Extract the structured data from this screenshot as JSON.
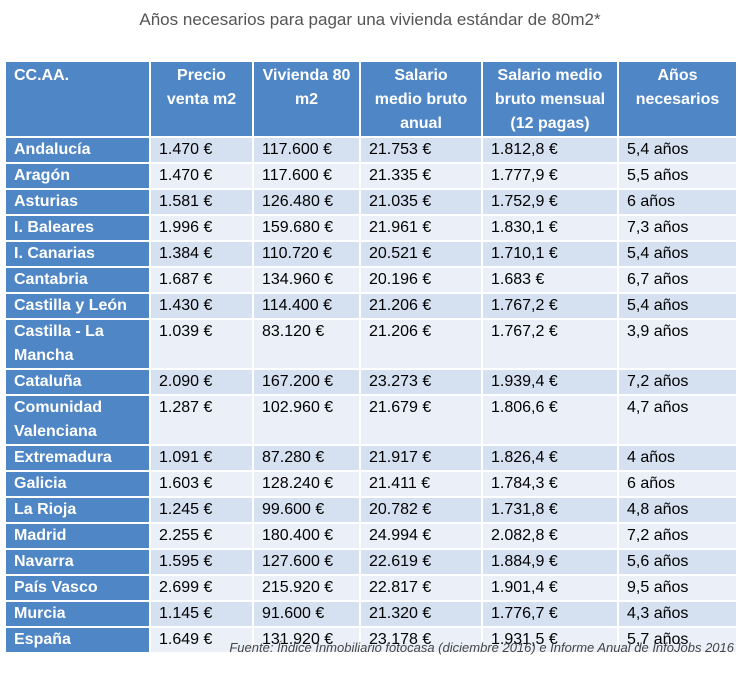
{
  "title": "Años necesarios para pagar una vivienda estándar de 80m2*",
  "table": {
    "headers": [
      "CC.AA.",
      "Precio venta m2",
      "Vivienda 80 m2",
      "Salario medio bruto anual",
      "Salario medio bruto mensual (12 pagas)",
      "Años necesarios"
    ],
    "rows": [
      [
        "Andalucía",
        "1.470 €",
        "117.600 €",
        "21.753 €",
        "1.812,8 €",
        "5,4 años"
      ],
      [
        "Aragón",
        "1.470 €",
        "117.600 €",
        "21.335 €",
        "1.777,9 €",
        "5,5 años"
      ],
      [
        "Asturias",
        "1.581 €",
        "126.480 €",
        "21.035 €",
        "1.752,9 €",
        "6 años"
      ],
      [
        "I. Baleares",
        "1.996 €",
        "159.680 €",
        "21.961 €",
        "1.830,1 €",
        "7,3 años"
      ],
      [
        "I. Canarias",
        "1.384 €",
        "110.720 €",
        "20.521 €",
        "1.710,1 €",
        "5,4 años"
      ],
      [
        "Cantabria",
        "1.687 €",
        "134.960 €",
        "20.196 €",
        "1.683 €",
        "6,7 años"
      ],
      [
        "Castilla y León",
        "1.430 €",
        "114.400 €",
        "21.206 €",
        "1.767,2 €",
        "5,4 años"
      ],
      [
        "Castilla - La Mancha",
        "1.039 €",
        "83.120 €",
        "21.206 €",
        "1.767,2 €",
        "3,9 años"
      ],
      [
        "Cataluña",
        "2.090 €",
        "167.200 €",
        "23.273 €",
        "1.939,4 €",
        "7,2 años"
      ],
      [
        "Comunidad Valenciana",
        "1.287 €",
        "102.960 €",
        "21.679 €",
        "1.806,6 €",
        "4,7 años"
      ],
      [
        "Extremadura",
        "1.091 €",
        "87.280 €",
        "21.917 €",
        "1.826,4 €",
        "4 años"
      ],
      [
        "Galicia",
        "1.603 €",
        "128.240 €",
        "21.411 €",
        "1.784,3 €",
        "6 años"
      ],
      [
        "La Rioja",
        "1.245 €",
        "99.600 €",
        "20.782 €",
        "1.731,8 €",
        "4,8 años"
      ],
      [
        "Madrid",
        "2.255 €",
        "180.400 €",
        "24.994 €",
        "2.082,8 €",
        "7,2 años"
      ],
      [
        "Navarra",
        "1.595 €",
        "127.600 €",
        "22.619 €",
        "1.884,9 €",
        "5,6 años"
      ],
      [
        "País Vasco",
        "2.699 €",
        "215.920 €",
        "22.817 €",
        "1.901,4 €",
        "9,5 años"
      ],
      [
        "Murcia",
        "1.145 €",
        "91.600 €",
        "21.320 €",
        "1.776,7 €",
        "4,3 años"
      ],
      [
        "España",
        "1.649 €",
        "131.920 €",
        "23.178 €",
        "1.931,5 €",
        "5,7 años"
      ]
    ]
  },
  "source": "Fuente: Índice Inmobiliario fotocasa (diciembre 2016) e Informe Anual de InfoJobs 2016"
}
